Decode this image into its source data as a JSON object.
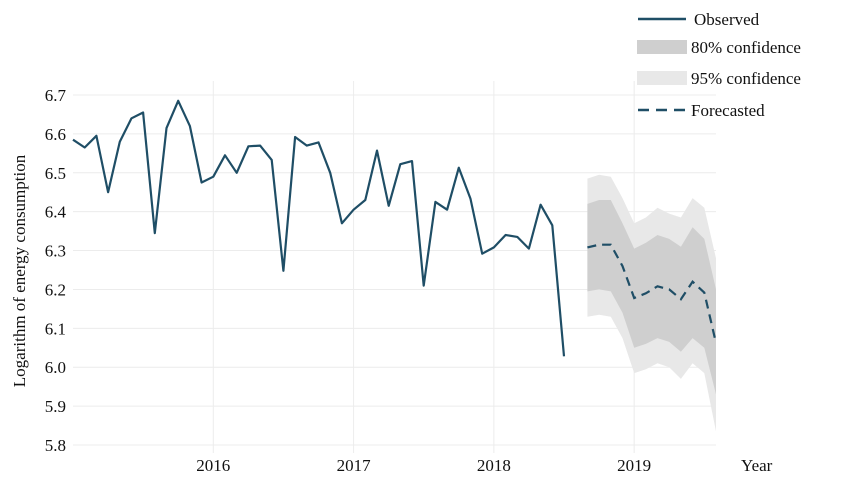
{
  "chart_data": {
    "type": "line",
    "title": "",
    "xlabel": "Year",
    "ylabel": "Logarithm of energy consumption",
    "xlim": [
      "2015-01",
      "2019-08"
    ],
    "ylim": [
      5.8,
      6.7
    ],
    "y_ticks": [
      "5.8",
      "5.9",
      "6.0",
      "6.1",
      "6.2",
      "6.3",
      "6.4",
      "6.5",
      "6.6",
      "6.7"
    ],
    "x_ticks": [
      "2016",
      "2017",
      "2018",
      "2019"
    ],
    "grid": true,
    "legend_position": "top-right",
    "legend": {
      "observed": "Observed",
      "ci80": "80% confidence",
      "ci95": "95% confidence",
      "forecast": "Forecasted"
    },
    "colors": {
      "observed": "#1f4e66",
      "forecast": "#1f4e66",
      "ci80": "#cfcfcf",
      "ci95": "#e8e8e8"
    },
    "observed": {
      "x": [
        "2015-01",
        "2015-02",
        "2015-03",
        "2015-04",
        "2015-05",
        "2015-06",
        "2015-07",
        "2015-08",
        "2015-09",
        "2015-10",
        "2015-11",
        "2015-12",
        "2016-01",
        "2016-02",
        "2016-03",
        "2016-04",
        "2016-05",
        "2016-06",
        "2016-07",
        "2016-08",
        "2016-09",
        "2016-10",
        "2016-11",
        "2016-12",
        "2017-01",
        "2017-02",
        "2017-03",
        "2017-04",
        "2017-05",
        "2017-06",
        "2017-07",
        "2017-08",
        "2017-09",
        "2017-10",
        "2017-11",
        "2017-12",
        "2018-01",
        "2018-02",
        "2018-03",
        "2018-04",
        "2018-05",
        "2018-06",
        "2018-07",
        "2018-08"
      ],
      "y": [
        6.585,
        6.565,
        6.595,
        6.45,
        6.58,
        6.64,
        6.655,
        6.345,
        6.615,
        6.685,
        6.62,
        6.475,
        6.49,
        6.545,
        6.5,
        6.568,
        6.57,
        6.533,
        6.248,
        6.592,
        6.57,
        6.578,
        6.5,
        6.37,
        6.405,
        6.43,
        6.557,
        6.415,
        6.522,
        6.53,
        6.21,
        6.425,
        6.405,
        6.513,
        6.433,
        6.292,
        6.308,
        6.34,
        6.335,
        6.305,
        6.418,
        6.365,
        6.028,
        null
      ]
    },
    "forecast": {
      "x": [
        "2018-09",
        "2018-10",
        "2018-11",
        "2018-12",
        "2019-01",
        "2019-02",
        "2019-03",
        "2019-04",
        "2019-05",
        "2019-06",
        "2019-07",
        "2019-08"
      ],
      "y": [
        6.308,
        6.315,
        6.315,
        6.26,
        6.178,
        6.19,
        6.208,
        6.2,
        6.175,
        6.22,
        6.192,
        6.062
      ],
      "ci80_lower": [
        6.195,
        6.2,
        6.195,
        6.14,
        6.05,
        6.06,
        6.075,
        6.065,
        6.04,
        6.075,
        6.05,
        5.93
      ],
      "ci80_upper": [
        6.42,
        6.43,
        6.43,
        6.37,
        6.305,
        6.32,
        6.34,
        6.33,
        6.31,
        6.36,
        6.33,
        6.2
      ],
      "ci95_lower": [
        6.13,
        6.135,
        6.13,
        6.075,
        5.985,
        5.995,
        6.01,
        6.0,
        5.97,
        6.01,
        5.985,
        5.835
      ],
      "ci95_upper": [
        6.485,
        6.495,
        6.49,
        6.435,
        6.37,
        6.385,
        6.41,
        6.395,
        6.385,
        6.435,
        6.41,
        6.28
      ]
    }
  }
}
